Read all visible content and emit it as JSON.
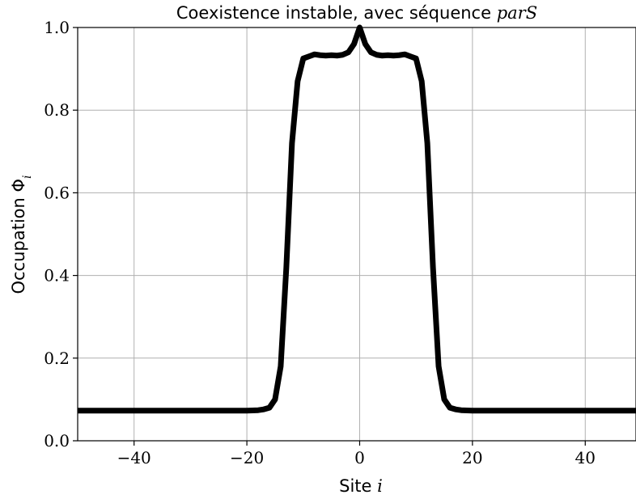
{
  "chart_data": {
    "type": "line",
    "title": "Coexistence instable, avec séquence ",
    "title_math": "parS",
    "xlabel": "Site ",
    "xlabel_math": "i",
    "ylabel": "Occupation Φ",
    "ylabel_sub": "i",
    "xlim": [
      -50,
      49
    ],
    "ylim": [
      0.0,
      1.0
    ],
    "grid": true,
    "x_ticks": [
      -40,
      -20,
      0,
      20,
      40
    ],
    "x_tick_labels": [
      "−40",
      "−20",
      "0",
      "20",
      "40"
    ],
    "y_ticks": [
      0.0,
      0.2,
      0.4,
      0.6,
      0.8,
      1.0
    ],
    "y_tick_labels": [
      "0.0",
      "0.2",
      "0.4",
      "0.6",
      "0.8",
      "1.0"
    ],
    "series": [
      {
        "color": "#000000",
        "x": [
          -50,
          -20,
          -18,
          -17,
          -16,
          -15,
          -14,
          -13,
          -12,
          -11,
          -10,
          -9,
          -8,
          -7,
          -6,
          -5,
          -4,
          -3,
          -2,
          -1,
          0,
          1,
          2,
          3,
          4,
          5,
          6,
          7,
          8,
          9,
          10,
          11,
          12,
          13,
          14,
          15,
          16,
          17,
          18,
          20,
          49
        ],
        "y": [
          0.073,
          0.073,
          0.074,
          0.076,
          0.08,
          0.1,
          0.18,
          0.42,
          0.72,
          0.87,
          0.925,
          0.93,
          0.935,
          0.933,
          0.932,
          0.933,
          0.932,
          0.934,
          0.94,
          0.96,
          1.0,
          0.96,
          0.94,
          0.934,
          0.932,
          0.933,
          0.932,
          0.933,
          0.935,
          0.93,
          0.925,
          0.87,
          0.72,
          0.42,
          0.18,
          0.1,
          0.08,
          0.076,
          0.074,
          0.073,
          0.073
        ]
      }
    ]
  }
}
